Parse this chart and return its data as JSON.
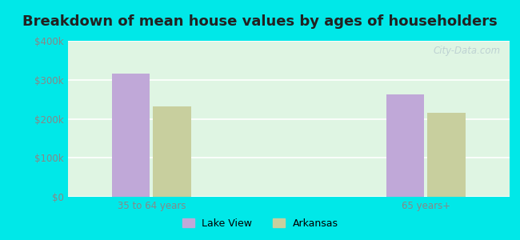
{
  "title": "Breakdown of mean house values by ages of householders",
  "title_fontsize": 13,
  "title_fontweight": "bold",
  "categories": [
    "35 to 64 years",
    "65 years+"
  ],
  "series": {
    "Lake View": [
      315000,
      262000
    ],
    "Arkansas": [
      232000,
      215000
    ]
  },
  "bar_colors": {
    "Lake View": "#c0a8d8",
    "Arkansas": "#c8cf9e"
  },
  "legend_labels": [
    "Lake View",
    "Arkansas"
  ],
  "ylim": [
    0,
    400000
  ],
  "yticks": [
    0,
    100000,
    200000,
    300000,
    400000
  ],
  "ytick_labels": [
    "$0",
    "$100k",
    "$200k",
    "$300k",
    "$400k"
  ],
  "background_color": "#00e8e8",
  "plot_bg_top": "#d8f0d8",
  "plot_bg_bottom": "#f0fdf0",
  "grid_color": "#ffffff",
  "bar_width": 0.25,
  "watermark": "City-Data.com"
}
